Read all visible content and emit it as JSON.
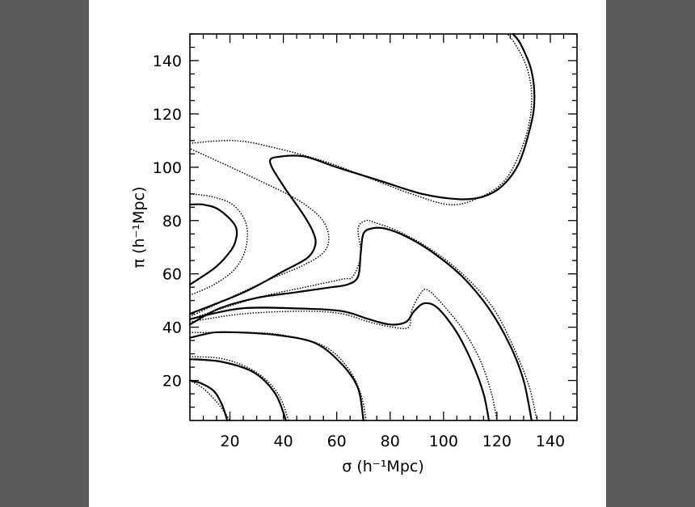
{
  "chart_data": {
    "type": "contour",
    "xlabel": "σ (h⁻¹Mpc)",
    "ylabel": "π (h⁻¹Mpc)",
    "xlim": [
      5,
      150
    ],
    "ylim": [
      5,
      150
    ],
    "xticks": [
      "20",
      "40",
      "60",
      "80",
      "100",
      "120",
      "140"
    ],
    "yticks": [
      "20",
      "40",
      "60",
      "80",
      "100",
      "120",
      "140"
    ],
    "xtick_values": [
      20,
      40,
      60,
      80,
      100,
      120,
      140
    ],
    "ytick_values": [
      20,
      40,
      60,
      80,
      100,
      120,
      140
    ],
    "grid": false,
    "legend": "none",
    "series": [
      {
        "style": "solid",
        "contours": [
          [
            [
              5,
              20
            ],
            [
              9,
              19
            ],
            [
              14,
              16
            ],
            [
              17,
              11
            ],
            [
              19,
              5
            ]
          ],
          [
            [
              5,
              28
            ],
            [
              17,
              27
            ],
            [
              29,
              23
            ],
            [
              37,
              15
            ],
            [
              41,
              5
            ]
          ],
          [
            [
              5,
              36
            ],
            [
              14,
              38
            ],
            [
              24,
              38
            ],
            [
              38,
              37
            ],
            [
              52,
              34
            ],
            [
              62,
              26
            ],
            [
              68,
              17
            ],
            [
              70,
              5
            ]
          ],
          [
            [
              5,
              43
            ],
            [
              24,
              47
            ],
            [
              46,
              47
            ],
            [
              62,
              46
            ],
            [
              72,
              43
            ],
            [
              80,
              41
            ],
            [
              86,
              42
            ],
            [
              89,
              46
            ],
            [
              93,
              49
            ],
            [
              98,
              47
            ],
            [
              105,
              38
            ],
            [
              111,
              26
            ],
            [
              115,
              15
            ],
            [
              117,
              5
            ]
          ],
          [
            [
              5,
              41
            ],
            [
              16,
              47
            ],
            [
              30,
              51
            ],
            [
              44,
              53
            ],
            [
              58,
              55
            ],
            [
              64,
              56
            ],
            [
              68,
              59
            ],
            [
              69,
              68
            ],
            [
              70,
              75
            ],
            [
              73,
              77
            ],
            [
              78,
              77
            ],
            [
              86,
              74
            ],
            [
              96,
              68
            ],
            [
              107,
              59
            ],
            [
              117,
              47
            ],
            [
              125,
              33
            ],
            [
              130,
              20
            ],
            [
              133,
              5
            ]
          ],
          [
            [
              5,
              45
            ],
            [
              25,
              53
            ],
            [
              40,
              61
            ],
            [
              49,
              66
            ],
            [
              52,
              71
            ],
            [
              51,
              76
            ],
            [
              47,
              83
            ],
            [
              40,
              93
            ],
            [
              35,
              102
            ],
            [
              39,
              104
            ],
            [
              48,
              104
            ],
            [
              60,
              100
            ],
            [
              76,
              95
            ],
            [
              92,
              90
            ],
            [
              106,
              88
            ],
            [
              115,
              89
            ],
            [
              122,
              93
            ],
            [
              128,
              101
            ],
            [
              132,
              113
            ],
            [
              134,
              124
            ],
            [
              133,
              136
            ],
            [
              129,
              146
            ],
            [
              126,
              150
            ]
          ],
          [
            [
              5,
              56
            ],
            [
              14,
              62
            ],
            [
              19,
              67
            ],
            [
              22,
              72
            ],
            [
              22,
              78
            ],
            [
              16,
              84
            ],
            [
              10,
              86
            ],
            [
              5,
              86
            ]
          ]
        ]
      },
      {
        "style": "dotted",
        "contours": [
          [
            [
              5,
              20
            ],
            [
              10,
              17
            ],
            [
              15,
              12
            ],
            [
              18,
              8
            ],
            [
              20,
              5
            ]
          ],
          [
            [
              5,
              29
            ],
            [
              18,
              28
            ],
            [
              30,
              23
            ],
            [
              38,
              15
            ],
            [
              42,
              5
            ]
          ],
          [
            [
              5,
              38
            ],
            [
              16,
              38
            ],
            [
              28,
              38
            ],
            [
              40,
              37
            ],
            [
              55,
              33
            ],
            [
              64,
              25
            ],
            [
              69,
              15
            ],
            [
              71,
              5
            ]
          ],
          [
            [
              5,
              42
            ],
            [
              25,
              45
            ],
            [
              48,
              46
            ],
            [
              62,
              45
            ],
            [
              72,
              42
            ],
            [
              81,
              40
            ],
            [
              87,
              40
            ],
            [
              88,
              46
            ],
            [
              91,
              52
            ],
            [
              94,
              54
            ],
            [
              101,
              47
            ],
            [
              108,
              38
            ],
            [
              114,
              27
            ],
            [
              118,
              15
            ],
            [
              120,
              5
            ]
          ],
          [
            [
              5,
              43
            ],
            [
              20,
              48
            ],
            [
              34,
              52
            ],
            [
              48,
              55
            ],
            [
              62,
              58
            ],
            [
              66,
              59
            ],
            [
              69,
              67
            ],
            [
              68,
              77
            ],
            [
              71,
              80
            ],
            [
              75,
              79
            ],
            [
              83,
              76
            ],
            [
              94,
              70
            ],
            [
              106,
              61
            ],
            [
              118,
              48
            ],
            [
              126,
              33
            ],
            [
              132,
              18
            ],
            [
              135,
              5
            ]
          ],
          [
            [
              5,
              109
            ],
            [
              22,
              110
            ],
            [
              38,
              107
            ],
            [
              56,
              102
            ],
            [
              72,
              96
            ],
            [
              88,
              90
            ],
            [
              102,
              86
            ],
            [
              112,
              88
            ],
            [
              122,
              94
            ],
            [
              128,
              104
            ],
            [
              132,
              116
            ],
            [
              133,
              128
            ],
            [
              131,
              138
            ],
            [
              127,
              146
            ],
            [
              124,
              150
            ]
          ],
          [
            [
              5,
              44
            ],
            [
              20,
              51
            ],
            [
              35,
              58
            ],
            [
              47,
              63
            ],
            [
              55,
              68
            ],
            [
              57,
              74
            ],
            [
              54,
              81
            ],
            [
              45,
              88
            ],
            [
              31,
              95
            ],
            [
              16,
              102
            ],
            [
              5,
              107
            ]
          ],
          [
            [
              5,
              52
            ],
            [
              14,
              56
            ],
            [
              22,
              62
            ],
            [
              26,
              70
            ],
            [
              26,
              79
            ],
            [
              21,
              86
            ],
            [
              13,
              89
            ],
            [
              5,
              90
            ]
          ]
        ]
      }
    ]
  }
}
